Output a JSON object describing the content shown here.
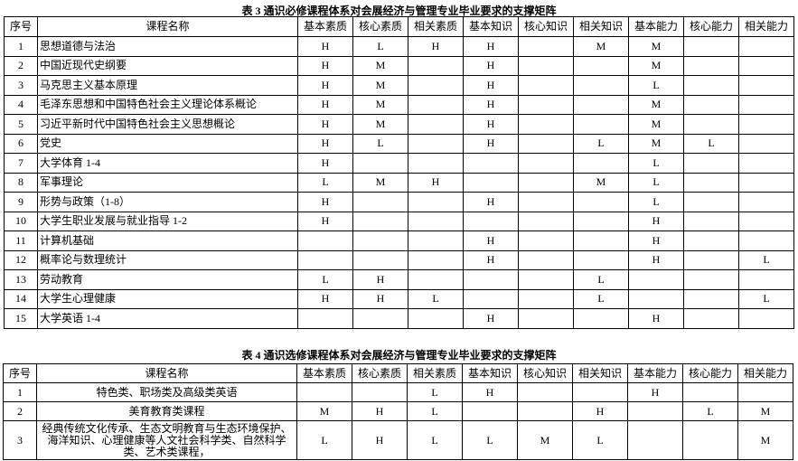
{
  "table3": {
    "title": "表 3 通识必修课程体系对会展经济与管理专业毕业要求的支撑矩阵",
    "headers": [
      "序号",
      "课程名称",
      "基本素质",
      "核心素质",
      "相关素质",
      "基本知识",
      "核心知识",
      "相关知识",
      "基本能力",
      "核心能力",
      "相关能力"
    ],
    "rows": [
      [
        1,
        "思想道德与法治",
        "H",
        "L",
        "H",
        "H",
        null,
        "M",
        "M",
        null,
        null
      ],
      [
        2,
        "中国近现代史纲要",
        "H",
        "M",
        null,
        "H",
        null,
        null,
        "M",
        null,
        null
      ],
      [
        3,
        "马克思主义基本原理",
        "H",
        "M",
        null,
        "H",
        null,
        null,
        "L",
        null,
        null
      ],
      [
        4,
        "毛泽东思想和中国特色社会主义理论体系概论",
        "H",
        "M",
        null,
        "H",
        null,
        null,
        "M",
        null,
        null
      ],
      [
        5,
        "习近平新时代中国特色社会主义思想概论",
        "H",
        "M",
        null,
        "H",
        null,
        null,
        "M",
        null,
        null
      ],
      [
        6,
        "党史",
        "H",
        "L",
        null,
        "H",
        null,
        "L",
        "M",
        "L",
        null
      ],
      [
        7,
        "大学体育 1-4",
        "H",
        null,
        null,
        null,
        null,
        null,
        "L",
        null,
        null
      ],
      [
        8,
        "军事理论",
        "L",
        "M",
        "H",
        null,
        null,
        "M",
        "L",
        null,
        null
      ],
      [
        9,
        "形势与政策（1-8）",
        "H",
        null,
        null,
        "H",
        null,
        null,
        "L",
        null,
        null
      ],
      [
        10,
        "大学生职业发展与就业指导 1-2",
        "H",
        null,
        null,
        null,
        null,
        null,
        "H",
        null,
        null
      ],
      [
        11,
        "计算机基础",
        null,
        null,
        null,
        "H",
        null,
        null,
        "H",
        null,
        null
      ],
      [
        12,
        "概率论与数理统计",
        null,
        null,
        null,
        "H",
        null,
        null,
        "H",
        null,
        "L"
      ],
      [
        13,
        "劳动教育",
        "L",
        "H",
        null,
        null,
        null,
        "L",
        null,
        null,
        null
      ],
      [
        14,
        "大学生心理健康",
        "H",
        "H",
        "L",
        null,
        null,
        "L",
        null,
        null,
        "L"
      ],
      [
        15,
        "大学英语 1-4",
        null,
        null,
        null,
        "H",
        null,
        null,
        "H",
        null,
        null
      ]
    ]
  },
  "table4": {
    "title": "表 4 通识选修课程体系对会展经济与管理专业毕业要求的支撑矩阵",
    "headers": [
      "序号",
      "课程名称",
      "基本素质",
      "核心素质",
      "相关素质",
      "基本知识",
      "核心知识",
      "相关知识",
      "基本能力",
      "核心能力",
      "相关能力"
    ],
    "rows": [
      [
        1,
        "特色类、职场类及高级类英语",
        null,
        null,
        "L",
        "H",
        null,
        null,
        "H",
        null,
        null
      ],
      [
        2,
        "美育教育类课程",
        "M",
        "H",
        "L",
        null,
        null,
        "H",
        null,
        "L",
        "M"
      ],
      [
        3,
        "经典传统文化传承、生态文明教育与生态环境保护、海洋知识、心理健康等人文社会科学类、自然科学类、艺术类课程，",
        "L",
        "H",
        "L",
        "L",
        "M",
        "L",
        null,
        null,
        "M"
      ]
    ]
  }
}
